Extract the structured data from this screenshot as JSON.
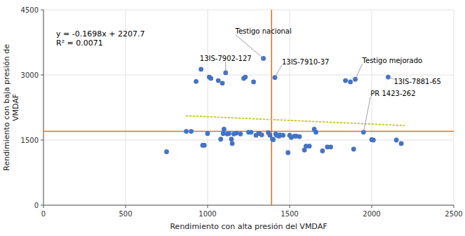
{
  "chart_data": {
    "type": "scatter",
    "x": [
      750,
      870,
      900,
      930,
      960,
      970,
      980,
      1000,
      1010,
      1020,
      1065,
      1080,
      1090,
      1095,
      1100,
      1110,
      1120,
      1130,
      1145,
      1150,
      1160,
      1175,
      1200,
      1220,
      1230,
      1250,
      1265,
      1280,
      1295,
      1310,
      1315,
      1330,
      1340,
      1370,
      1380,
      1395,
      1400,
      1410,
      1415,
      1420,
      1435,
      1440,
      1460,
      1490,
      1500,
      1510,
      1530,
      1540,
      1560,
      1590,
      1600,
      1620,
      1650,
      1660,
      1700,
      1730,
      1750,
      1840,
      1870,
      1890,
      1900,
      1950,
      2000,
      2010,
      2100,
      2150,
      2180
    ],
    "values": [
      1230,
      1700,
      1700,
      2850,
      3130,
      1380,
      1380,
      1650,
      2950,
      2920,
      2870,
      1520,
      2810,
      1650,
      1750,
      3050,
      1640,
      1650,
      1520,
      1420,
      1640,
      1660,
      1640,
      2920,
      2950,
      1680,
      1680,
      2840,
      1610,
      1650,
      1650,
      1620,
      3380,
      1670,
      1610,
      1520,
      1510,
      2940,
      1640,
      1610,
      1590,
      1620,
      1610,
      1210,
      1610,
      1560,
      1590,
      1590,
      1580,
      1270,
      1360,
      1360,
      1750,
      1680,
      1250,
      1340,
      1340,
      2870,
      2840,
      1290,
      2900,
      1680,
      1510,
      1500,
      2950,
      1500,
      1420
    ],
    "color": "#4472C4",
    "reference_lines": [
      {
        "axis": "y",
        "value": 1700,
        "color": "#E07020"
      },
      {
        "axis": "x",
        "value": 1390,
        "color": "#E07020"
      }
    ],
    "trend": {
      "x": [
        870,
        2200
      ],
      "values": [
        2059.974,
        1834.14
      ],
      "color": "#C8C820",
      "line_style": "dotted"
    },
    "annotations": [
      "y = -0.1698x + 2207.7",
      "R² = 0.0071"
    ],
    "point_labels": [
      {
        "text": "Testigo nacional",
        "x": 1340,
        "y": 3380
      },
      {
        "text": "13IS-7910-37",
        "x": 1410,
        "y": 2940
      },
      {
        "text": "13IS-7902-127",
        "x": 1110,
        "y": 3050
      },
      {
        "text": "Testigo mejorado",
        "x": 1900,
        "y": 2900
      },
      {
        "text": "13IS-7881-65",
        "x": 2100,
        "y": 2950
      },
      {
        "text": "PR 1423-262",
        "x": 1950,
        "y": 1680
      }
    ],
    "x_label": "Rendimiento con alta presión del VMDAF",
    "y_label": "Rendimiento con baja presión de\nVMDAF",
    "xlim": [
      0,
      2500
    ],
    "ylim": [
      0,
      4500
    ],
    "xticks": [
      0,
      500,
      1000,
      1500,
      2000,
      2500
    ],
    "yticks": [
      0,
      1500,
      3000,
      4500
    ],
    "grid": true
  }
}
